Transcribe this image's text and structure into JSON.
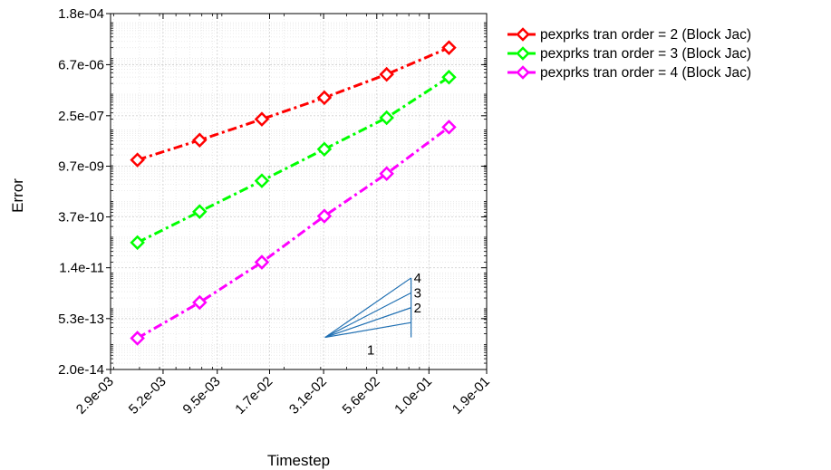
{
  "chart_data": {
    "type": "line",
    "title": "",
    "xlabel": "Timestep",
    "ylabel": "Error",
    "x_scale": "log",
    "y_scale": "log",
    "xlim": [
      0.0029,
      0.19
    ],
    "ylim": [
      2e-14,
      0.00018
    ],
    "xticks": [
      0.0029,
      0.0052,
      0.0095,
      0.017,
      0.031,
      0.056,
      0.1,
      0.19
    ],
    "xtick_labels": [
      "2.9e-03",
      "5.2e-03",
      "9.5e-03",
      "1.7e-02",
      "3.1e-02",
      "5.6e-02",
      "1.0e-01",
      "1.9e-01"
    ],
    "yticks": [
      2e-14,
      5.3e-13,
      1.4e-11,
      3.7e-10,
      9.7e-09,
      2.5e-07,
      6.7e-06,
      0.00018
    ],
    "ytick_labels": [
      "2.0e-14",
      "5.3e-13",
      "1.4e-11",
      "3.7e-10",
      "9.7e-09",
      "2.5e-07",
      "6.7e-06",
      "1.8e-04"
    ],
    "grid": true,
    "legend_position": "outside-top-right",
    "x": [
      0.00391,
      0.00781,
      0.0156,
      0.03125,
      0.0625,
      0.125
    ],
    "series": [
      {
        "name": "pexprks tran order = 2 (Block Jac)",
        "color": "#ff0000",
        "marker": "diamond",
        "linestyle": "dash-dot",
        "values": [
          1.45e-08,
          5.2e-08,
          2e-07,
          8e-07,
          3.6e-06,
          2e-05
        ]
      },
      {
        "name": "pexprks tran order = 3 (Block Jac)",
        "color": "#00ff00",
        "marker": "diamond",
        "linestyle": "dash-dot",
        "values": [
          7.1e-11,
          5.2e-10,
          3.8e-09,
          2.9e-08,
          2.2e-07,
          3e-06
        ]
      },
      {
        "name": "pexprks tran order = 4 (Block Jac)",
        "color": "#ff00ff",
        "marker": "diamond",
        "linestyle": "dash-dot",
        "values": [
          1.5e-13,
          1.5e-12,
          2e-11,
          3.9e-10,
          6e-09,
          1.2e-07
        ]
      }
    ],
    "slope_triangle": {
      "color": "#1f6fb2",
      "x_start": 0.0315,
      "x_end": 0.082,
      "y_base": 1.58e-13,
      "slopes": [
        1,
        2,
        3,
        4
      ],
      "labels": [
        "1",
        "2",
        "3",
        "4"
      ]
    }
  }
}
